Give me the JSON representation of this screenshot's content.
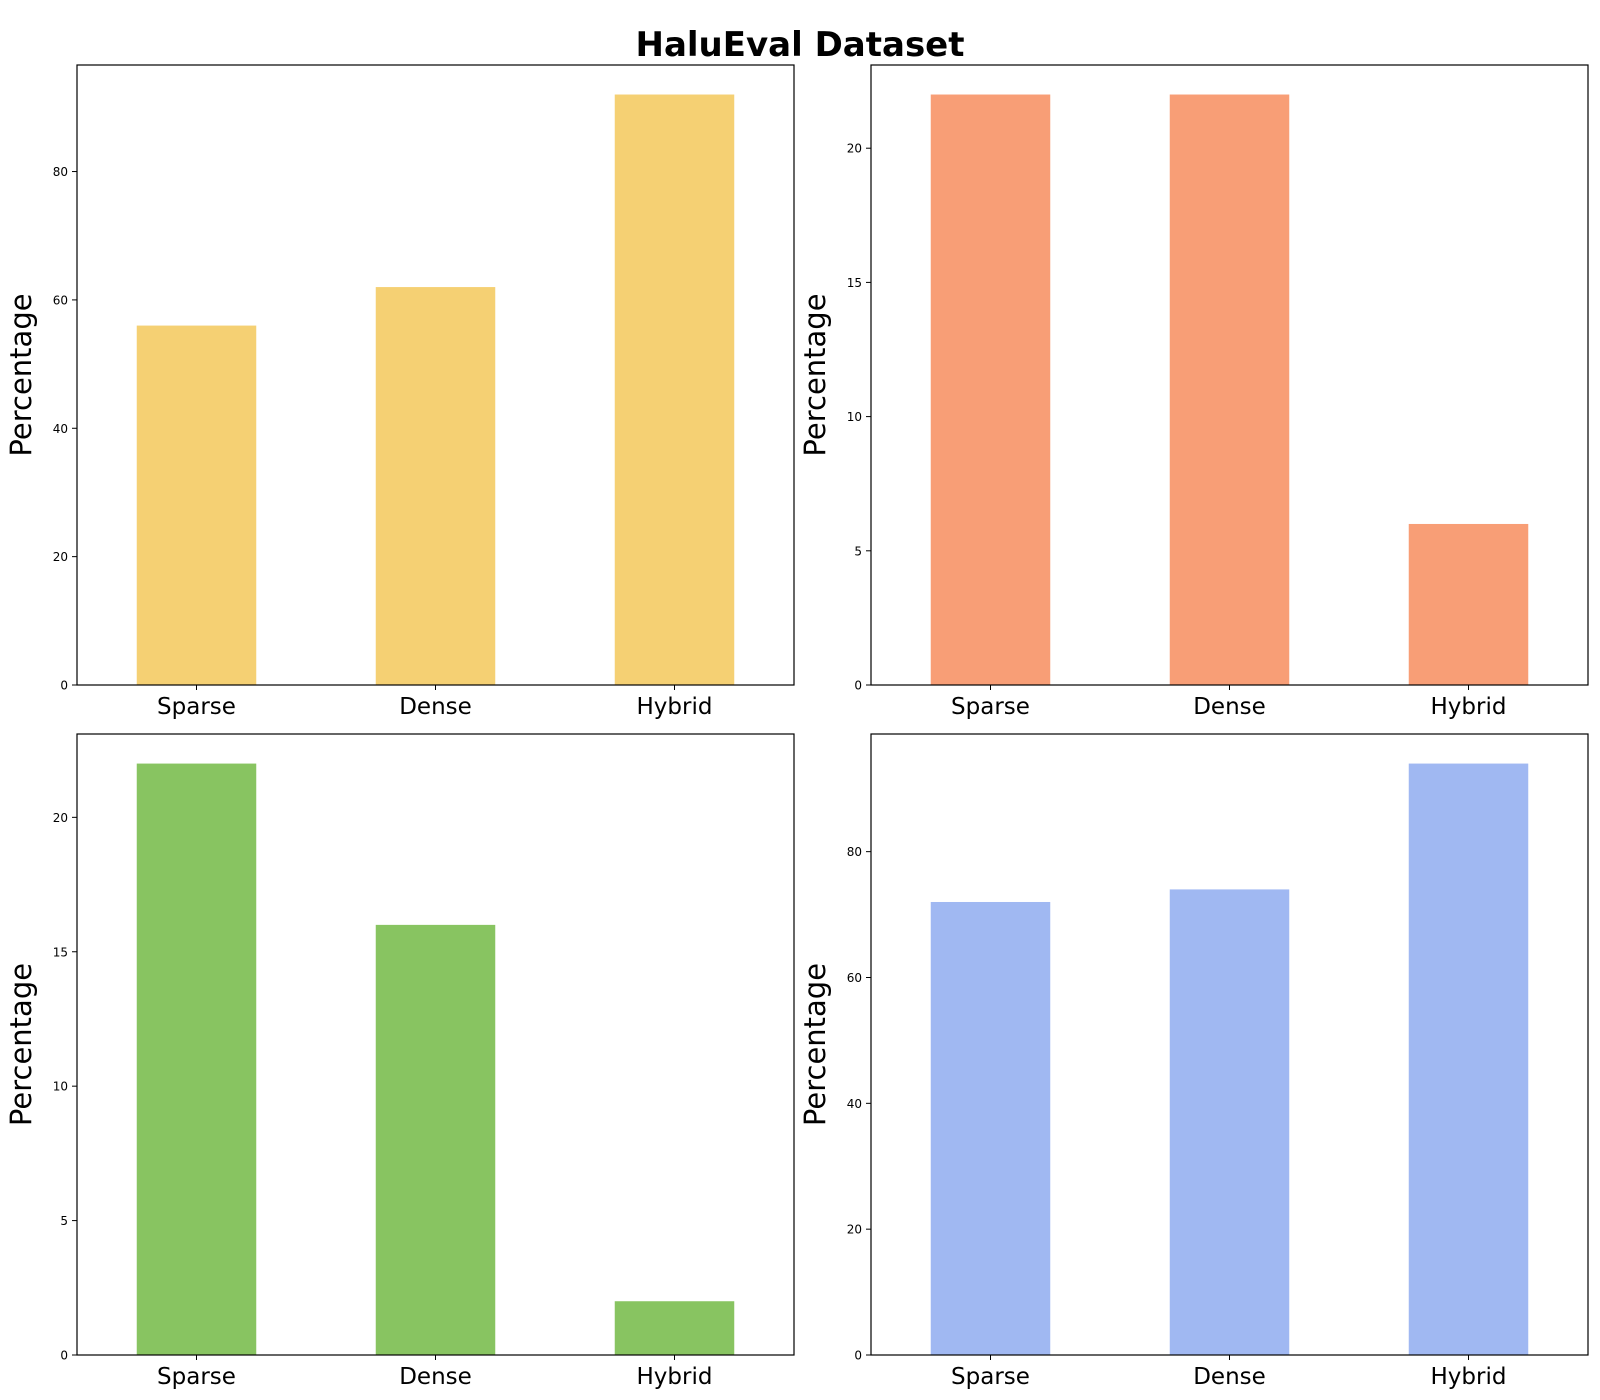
{
  "title": "HaluEval Dataset",
  "chart_data": [
    {
      "type": "bar",
      "categories": [
        "Sparse",
        "Dense",
        "Hybrid"
      ],
      "values": [
        56,
        62,
        92
      ],
      "color": "#F5D073",
      "ylabel": "Percentage",
      "ylim": [
        0,
        96.6
      ],
      "yticks": [
        0,
        20,
        40,
        60,
        80
      ],
      "grid": false
    },
    {
      "type": "bar",
      "categories": [
        "Sparse",
        "Dense",
        "Hybrid"
      ],
      "values": [
        22,
        22,
        6
      ],
      "color": "#F89E76",
      "ylabel": "Percentage",
      "ylim": [
        0,
        23.1
      ],
      "yticks": [
        0,
        5,
        10,
        15,
        20
      ],
      "grid": false
    },
    {
      "type": "bar",
      "categories": [
        "Sparse",
        "Dense",
        "Hybrid"
      ],
      "values": [
        22,
        16,
        2
      ],
      "color": "#88C461",
      "ylabel": "Percentage",
      "ylim": [
        0,
        23.1
      ],
      "yticks": [
        0,
        5,
        10,
        15,
        20
      ],
      "grid": false
    },
    {
      "type": "bar",
      "categories": [
        "Sparse",
        "Dense",
        "Hybrid"
      ],
      "values": [
        72,
        74,
        94
      ],
      "color": "#A0B8F2",
      "ylabel": "Percentage",
      "ylim": [
        0,
        98.7
      ],
      "yticks": [
        0,
        20,
        40,
        60,
        80
      ],
      "grid": false
    }
  ]
}
